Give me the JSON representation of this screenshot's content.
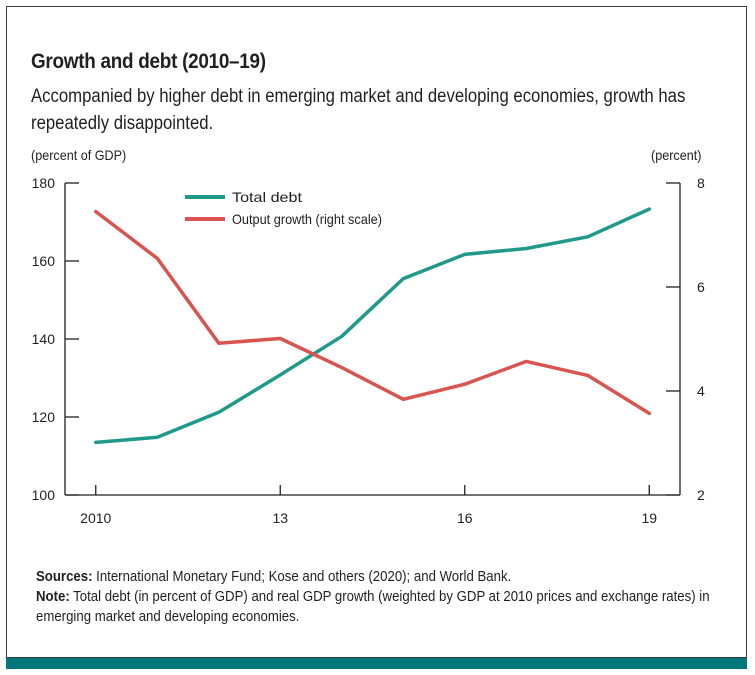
{
  "title": "Growth and debt (2010–19)",
  "subtitle": "Accompanied by higher debt in emerging market and developing economies, growth has repeatedly disappointed.",
  "left_unit": "(percent of GDP)",
  "right_unit": "(percent)",
  "sources_label": "Sources:",
  "sources_text": "International Monetary Fund; Kose and others (2020); and World Bank.",
  "note_label": "Note:",
  "note_text": "Total debt (in percent of GDP) and real GDP growth (weighted by GDP at 2010 prices and exchange rates) in emerging market and developing economies.",
  "colors": {
    "debt": "#1f9a8a",
    "growth": "#d9534f",
    "axis": "#231f20",
    "bar": "#00777a"
  },
  "chart_data": {
    "type": "line",
    "x": [
      2010,
      2011,
      2012,
      2013,
      2014,
      2015,
      2016,
      2017,
      2018,
      2019
    ],
    "x_ticks": [
      2010,
      2013,
      2016,
      2019
    ],
    "x_tick_labels": [
      "2010",
      "13",
      "16",
      "19"
    ],
    "xlim": [
      2009.5,
      2019.5
    ],
    "left_axis": {
      "label": "(percent of GDP)",
      "ylim": [
        100,
        180
      ],
      "ticks": [
        100,
        120,
        140,
        160,
        180
      ]
    },
    "right_axis": {
      "label": "(percent)",
      "ylim": [
        2,
        8
      ],
      "ticks": [
        2,
        4,
        6,
        8
      ]
    },
    "series": [
      {
        "name": "Total debt",
        "axis": "left",
        "color": "#1f9a8a",
        "values": [
          113.5,
          114.8,
          121.2,
          130.8,
          140.7,
          155.5,
          161.7,
          163.2,
          166.2,
          173.3
        ]
      },
      {
        "name": "Output growth (right scale)",
        "axis": "right",
        "color": "#d9534f",
        "values": [
          7.45,
          6.55,
          4.92,
          5.01,
          4.45,
          3.84,
          4.13,
          4.57,
          4.3,
          3.57
        ]
      }
    ],
    "legend_position": "top-left"
  }
}
